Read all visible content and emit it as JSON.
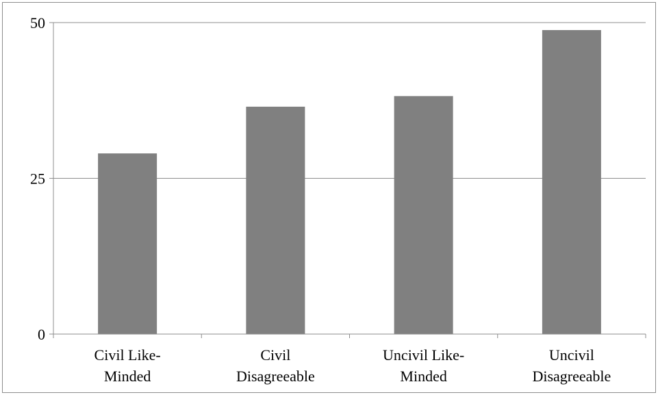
{
  "chart_data": {
    "type": "bar",
    "title": "",
    "xlabel": "",
    "ylabel": "",
    "categories": [
      [
        "Civil Like-",
        "Minded"
      ],
      [
        "Civil",
        "Disagreeable"
      ],
      [
        "Uncivil Like-",
        "Minded"
      ],
      [
        "Uncivil",
        "Disagreeable"
      ]
    ],
    "values": [
      29,
      36.5,
      38.2,
      48.8
    ],
    "ylim": [
      0,
      50
    ],
    "yticks": [
      0,
      25,
      50
    ],
    "grid": true,
    "legend": "none",
    "colors": {
      "bar": "#808080",
      "grid": "#8c8c8c",
      "axis": "#8c8c8c",
      "frame": "#8c8c8c"
    }
  }
}
